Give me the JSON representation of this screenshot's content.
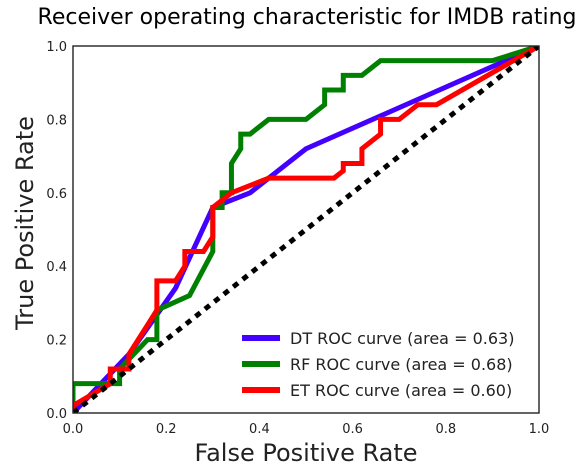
{
  "chart_data": {
    "type": "line",
    "title": "Receiver operating characteristic for IMDB rating",
    "xlabel": "False Positive Rate",
    "ylabel": "True Positive Rate",
    "xlim": [
      0.0,
      1.0
    ],
    "ylim": [
      0.0,
      1.0
    ],
    "xticks": [
      "0.0",
      "0.2",
      "0.4",
      "0.6",
      "0.8",
      "1.0"
    ],
    "yticks": [
      "0.0",
      "0.2",
      "0.4",
      "0.6",
      "0.8",
      "1.0"
    ],
    "grid": false,
    "legend_position": "lower-right",
    "series": [
      {
        "name": "DT ROC curve (area = 0.63)",
        "color": "#4400ff",
        "x": [
          0.0,
          0.12,
          0.22,
          0.3,
          0.38,
          0.5,
          1.0
        ],
        "y": [
          0.0,
          0.16,
          0.34,
          0.56,
          0.6,
          0.72,
          1.0
        ]
      },
      {
        "name": "RF ROC curve (area = 0.68)",
        "color": "#008000",
        "x": [
          0.0,
          0.0,
          0.1,
          0.1,
          0.16,
          0.18,
          0.18,
          0.25,
          0.3,
          0.3,
          0.32,
          0.32,
          0.34,
          0.34,
          0.36,
          0.36,
          0.38,
          0.42,
          0.5,
          0.54,
          0.54,
          0.58,
          0.58,
          0.62,
          0.66,
          0.9,
          1.0
        ],
        "y": [
          0.0,
          0.08,
          0.08,
          0.12,
          0.2,
          0.2,
          0.28,
          0.32,
          0.44,
          0.56,
          0.56,
          0.6,
          0.6,
          0.68,
          0.72,
          0.76,
          0.76,
          0.8,
          0.8,
          0.84,
          0.88,
          0.88,
          0.92,
          0.92,
          0.96,
          0.96,
          1.0
        ]
      },
      {
        "name": "ET ROC curve (area = 0.60)",
        "color": "#ff0000",
        "x": [
          0.0,
          0.0,
          0.08,
          0.08,
          0.12,
          0.12,
          0.16,
          0.18,
          0.18,
          0.22,
          0.24,
          0.24,
          0.28,
          0.3,
          0.3,
          0.34,
          0.42,
          0.56,
          0.58,
          0.58,
          0.62,
          0.62,
          0.66,
          0.66,
          0.7,
          0.72,
          0.74,
          0.74,
          0.78,
          1.0
        ],
        "y": [
          0.0,
          0.02,
          0.08,
          0.12,
          0.12,
          0.16,
          0.24,
          0.28,
          0.36,
          0.36,
          0.4,
          0.44,
          0.44,
          0.48,
          0.56,
          0.6,
          0.64,
          0.64,
          0.66,
          0.68,
          0.68,
          0.72,
          0.76,
          0.8,
          0.8,
          0.82,
          0.84,
          0.84,
          0.84,
          1.0
        ]
      },
      {
        "name": "",
        "color": "#000000",
        "dashed": true,
        "x": [
          0.0,
          1.0
        ],
        "y": [
          0.0,
          1.0
        ]
      }
    ]
  }
}
